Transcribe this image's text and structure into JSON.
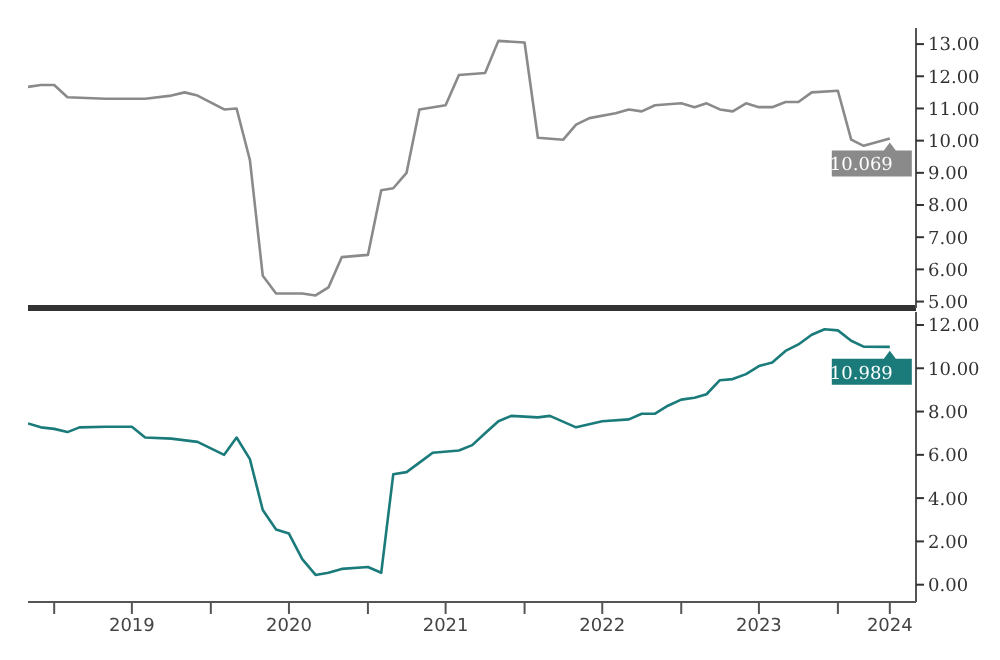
{
  "chart_data": [
    {
      "type": "line",
      "x": [
        "2018-11",
        "2018-12",
        "2019-01",
        "2019-02",
        "2019-05",
        "2019-08",
        "2019-10",
        "2019-11",
        "2019-12",
        "2020-02",
        "2020-03",
        "2020-04",
        "2020-05",
        "2020-06",
        "2020-08",
        "2020-09",
        "2020-10",
        "2020-11",
        "2021-01",
        "2021-02",
        "2021-03",
        "2021-04",
        "2021-05",
        "2021-07",
        "2021-08",
        "2021-10",
        "2021-11",
        "2022-01",
        "2022-02",
        "2022-04",
        "2022-05",
        "2022-06",
        "2022-08",
        "2022-09",
        "2022-10",
        "2022-11",
        "2023-01",
        "2023-02",
        "2023-03",
        "2023-04",
        "2023-05",
        "2023-06",
        "2023-07",
        "2023-08",
        "2023-09",
        "2023-10",
        "2023-11",
        "2024-01",
        "2024-02",
        "2024-03",
        "2024-05"
      ],
      "series": [
        {
          "color": "#8a8a8a",
          "values": [
            11.67,
            11.73,
            11.73,
            11.35,
            11.3,
            11.3,
            11.4,
            11.5,
            11.4,
            10.97,
            11.0,
            9.4,
            5.8,
            5.25,
            5.25,
            5.19,
            5.44,
            6.38,
            6.45,
            8.46,
            8.52,
            9.0,
            10.97,
            11.1,
            12.04,
            12.1,
            13.1,
            13.05,
            10.09,
            10.03,
            10.5,
            10.7,
            10.85,
            10.97,
            10.91,
            11.1,
            11.16,
            11.04,
            11.16,
            10.97,
            10.91,
            11.16,
            11.04,
            11.04,
            11.2,
            11.2,
            11.5,
            11.55,
            10.03,
            9.84,
            10.069
          ]
        }
      ],
      "xlim": [
        "2018-11",
        "2024-07"
      ],
      "ylim": [
        4.8,
        13.5
      ],
      "yticks": [
        {
          "value": 5,
          "label": "5.00"
        },
        {
          "value": 6,
          "label": "6.00"
        },
        {
          "value": 7,
          "label": "7.00"
        },
        {
          "value": 8,
          "label": "8.00"
        },
        {
          "value": 9,
          "label": "9.00"
        },
        {
          "value": 10,
          "label": "10.00"
        },
        {
          "value": 11,
          "label": "11.00"
        },
        {
          "value": 12,
          "label": "12.00"
        },
        {
          "value": 13,
          "label": "13.00"
        }
      ],
      "tick_labels": "y",
      "grid": false,
      "legend": false,
      "annotations": [
        {
          "text": "10.069",
          "x": "2024-05",
          "y": 10.069
        }
      ]
    },
    {
      "type": "line",
      "x": [
        "2018-11",
        "2018-12",
        "2019-01",
        "2019-02",
        "2019-03",
        "2019-05",
        "2019-07",
        "2019-08",
        "2019-10",
        "2019-12",
        "2020-02",
        "2020-03",
        "2020-04",
        "2020-05",
        "2020-06",
        "2020-07",
        "2020-08",
        "2020-09",
        "2020-10",
        "2020-11",
        "2021-01",
        "2021-02",
        "2021-03",
        "2021-04",
        "2021-05",
        "2021-06",
        "2021-08",
        "2021-09",
        "2021-10",
        "2021-11",
        "2021-12",
        "2022-02",
        "2022-03",
        "2022-05",
        "2022-07",
        "2022-09",
        "2022-10",
        "2022-11",
        "2022-12",
        "2023-01",
        "2023-02",
        "2023-03",
        "2023-04",
        "2023-05",
        "2023-06",
        "2023-07",
        "2023-08",
        "2023-09",
        "2023-10",
        "2023-11",
        "2023-12",
        "2024-01",
        "2024-02",
        "2024-03",
        "2024-05"
      ],
      "series": [
        {
          "color": "#1b7b7b",
          "values": [
            7.45,
            7.27,
            7.2,
            7.05,
            7.27,
            7.3,
            7.3,
            6.8,
            6.75,
            6.6,
            6.0,
            6.8,
            5.8,
            3.45,
            2.55,
            2.36,
            1.18,
            0.45,
            0.55,
            0.73,
            0.82,
            0.55,
            5.1,
            5.2,
            5.64,
            6.1,
            6.2,
            6.45,
            7.0,
            7.55,
            7.8,
            7.73,
            7.8,
            7.27,
            7.55,
            7.64,
            7.9,
            7.9,
            8.27,
            8.55,
            8.64,
            8.8,
            9.45,
            9.5,
            9.73,
            10.1,
            10.27,
            10.8,
            11.1,
            11.55,
            11.8,
            11.75,
            11.27,
            11.0,
            10.989
          ]
        }
      ],
      "xlim": [
        "2018-11",
        "2024-07"
      ],
      "ylim": [
        -0.8,
        12.6
      ],
      "xticks": [
        {
          "value": "2019-01",
          "label": null
        },
        {
          "value": "2019-07",
          "label": "2019"
        },
        {
          "value": "2020-01",
          "label": null
        },
        {
          "value": "2020-07",
          "label": "2020"
        },
        {
          "value": "2021-01",
          "label": null
        },
        {
          "value": "2021-07",
          "label": "2021"
        },
        {
          "value": "2022-01",
          "label": null
        },
        {
          "value": "2022-07",
          "label": "2022"
        },
        {
          "value": "2023-01",
          "label": null
        },
        {
          "value": "2023-07",
          "label": "2023"
        },
        {
          "value": "2024-01",
          "label": null
        },
        {
          "value": "2024-05",
          "label": "2024"
        }
      ],
      "yticks": [
        {
          "value": 0,
          "label": "0.00"
        },
        {
          "value": 2,
          "label": "2.00"
        },
        {
          "value": 4,
          "label": "4.00"
        },
        {
          "value": 6,
          "label": "6.00"
        },
        {
          "value": 8,
          "label": "8.00"
        },
        {
          "value": 10,
          "label": "10.00"
        },
        {
          "value": 12,
          "label": "12.00"
        }
      ],
      "grid": false,
      "legend": false,
      "annotations": [
        {
          "text": "10.989",
          "x": "2024-05",
          "y": 10.989
        }
      ]
    }
  ]
}
